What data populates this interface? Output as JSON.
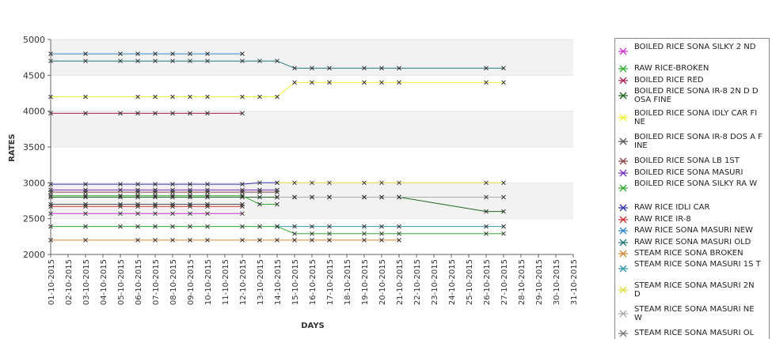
{
  "chart_data": {
    "type": "line",
    "xlabel": "DAYS",
    "ylabel": "RATES",
    "ylim": [
      2000,
      5000
    ],
    "yticks": [
      2000,
      2500,
      3000,
      3500,
      4000,
      4500,
      5000
    ],
    "grid": "alternating horizontal bands",
    "legend_placement": "right",
    "categories": [
      "01-10-2015",
      "02-10-2015",
      "03-10-2015",
      "04-10-2015",
      "05-10-2015",
      "06-10-2015",
      "07-10-2015",
      "08-10-2015",
      "09-10-2015",
      "10-10-2015",
      "11-10-2015",
      "12-10-2015",
      "13-10-2015",
      "14-10-2015",
      "15-10-2015",
      "16-10-2015",
      "17-10-2015",
      "18-10-2015",
      "19-10-2015",
      "20-10-2015",
      "21-10-2015",
      "22-10-2015",
      "23-10-2015",
      "24-10-2015",
      "25-10-2015",
      "26-10-2015",
      "27-10-2015",
      "28-10-2015",
      "29-10-2015",
      "30-10-2015",
      "31-10-2015"
    ],
    "series": [
      {
        "name": "BOILED RICE SONA SILKY 2 ND",
        "color": "#cc33cc",
        "points": [
          [
            1,
            2570
          ],
          [
            3,
            2570
          ],
          [
            5,
            2570
          ],
          [
            6,
            2570
          ],
          [
            7,
            2570
          ],
          [
            8,
            2570
          ],
          [
            9,
            2570
          ],
          [
            10,
            2570
          ],
          [
            12,
            2570
          ]
        ]
      },
      {
        "name": " RAW RICE-BROKEN",
        "color": "#33aa33",
        "points": [
          [
            1,
            2390
          ],
          [
            3,
            2390
          ],
          [
            5,
            2390
          ],
          [
            6,
            2390
          ],
          [
            7,
            2390
          ],
          [
            8,
            2390
          ],
          [
            9,
            2390
          ],
          [
            10,
            2390
          ],
          [
            12,
            2390
          ],
          [
            13,
            2390
          ],
          [
            14,
            2390
          ],
          [
            15,
            2290
          ],
          [
            16,
            2290
          ],
          [
            17,
            2290
          ],
          [
            19,
            2290
          ],
          [
            20,
            2290
          ],
          [
            21,
            2290
          ],
          [
            26,
            2290
          ],
          [
            27,
            2290
          ]
        ]
      },
      {
        "name": "BOILED RICE RED",
        "color": "#aa2255",
        "points": [
          [
            1,
            3970
          ],
          [
            3,
            3970
          ],
          [
            5,
            3970
          ],
          [
            6,
            3970
          ],
          [
            7,
            3970
          ],
          [
            8,
            3970
          ],
          [
            9,
            3970
          ],
          [
            10,
            3970
          ],
          [
            12,
            3970
          ]
        ]
      },
      {
        "name": "BOILED RICE SONA  IR-8 2N D DOSA FINE",
        "color": "#226622",
        "points": [
          [
            1,
            2800
          ],
          [
            3,
            2800
          ],
          [
            5,
            2800
          ],
          [
            6,
            2800
          ],
          [
            7,
            2800
          ],
          [
            8,
            2800
          ],
          [
            9,
            2800
          ],
          [
            10,
            2800
          ],
          [
            12,
            2800
          ],
          [
            13,
            2800
          ],
          [
            14,
            2800
          ],
          [
            15,
            2800
          ],
          [
            16,
            2800
          ],
          [
            17,
            2800
          ],
          [
            19,
            2800
          ],
          [
            20,
            2800
          ],
          [
            21,
            2800
          ],
          [
            26,
            2600
          ],
          [
            27,
            2600
          ]
        ]
      },
      {
        "name": "BOILED RICE SONA IDLY CAR  FINE",
        "color": "#eeee33",
        "points": [
          [
            1,
            4200
          ],
          [
            3,
            4200
          ],
          [
            6,
            4200
          ],
          [
            7,
            4200
          ],
          [
            8,
            4200
          ],
          [
            9,
            4200
          ],
          [
            10,
            4200
          ],
          [
            12,
            4200
          ],
          [
            13,
            4200
          ],
          [
            14,
            4200
          ],
          [
            15,
            4400
          ],
          [
            16,
            4400
          ],
          [
            17,
            4400
          ],
          [
            19,
            4400
          ],
          [
            20,
            4400
          ],
          [
            21,
            4400
          ],
          [
            26,
            4400
          ],
          [
            27,
            4400
          ]
        ]
      },
      {
        "name": "BOILED RICE SONA IR-8 DOS A FINE",
        "color": "#555555",
        "points": [
          [
            1,
            2700
          ],
          [
            3,
            2700
          ],
          [
            5,
            2700
          ],
          [
            6,
            2700
          ],
          [
            7,
            2700
          ],
          [
            8,
            2700
          ],
          [
            9,
            2700
          ],
          [
            10,
            2700
          ],
          [
            12,
            2700
          ]
        ]
      },
      {
        "name": "BOILED RICE SONA LB 1ST",
        "color": "#884444",
        "points": [
          [
            1,
            2870
          ],
          [
            3,
            2870
          ],
          [
            6,
            2870
          ],
          [
            7,
            2870
          ],
          [
            8,
            2870
          ],
          [
            9,
            2870
          ],
          [
            10,
            2870
          ],
          [
            12,
            2870
          ],
          [
            13,
            2870
          ],
          [
            14,
            2870
          ]
        ]
      },
      {
        "name": "BOILED RICE SONA MASURI",
        "color": "#7733bb",
        "points": [
          [
            1,
            2900
          ],
          [
            3,
            2900
          ],
          [
            5,
            2900
          ],
          [
            6,
            2900
          ],
          [
            7,
            2900
          ],
          [
            8,
            2900
          ],
          [
            9,
            2900
          ],
          [
            10,
            2900
          ],
          [
            12,
            2900
          ],
          [
            13,
            2900
          ],
          [
            14,
            2900
          ]
        ]
      },
      {
        "name": "BOILED RICE SONA SILKY RA W",
        "color": "#33aa33",
        "points": [
          [
            1,
            2820
          ],
          [
            3,
            2820
          ],
          [
            5,
            2820
          ],
          [
            6,
            2820
          ],
          [
            7,
            2820
          ],
          [
            8,
            2820
          ],
          [
            9,
            2820
          ],
          [
            10,
            2820
          ],
          [
            12,
            2820
          ],
          [
            13,
            2700
          ],
          [
            14,
            2700
          ]
        ]
      },
      {
        "name": "RAW RICE IDLI CAR",
        "color": "#3333aa",
        "points": [
          [
            1,
            2980
          ],
          [
            3,
            2980
          ],
          [
            5,
            2980
          ],
          [
            6,
            2980
          ],
          [
            7,
            2980
          ],
          [
            8,
            2980
          ],
          [
            9,
            2980
          ],
          [
            10,
            2980
          ],
          [
            12,
            2980
          ],
          [
            13,
            3000
          ],
          [
            14,
            3000
          ]
        ]
      },
      {
        "name": "RAW RICE IR-8",
        "color": "#cc3333",
        "points": [
          [
            1,
            2670
          ],
          [
            3,
            2670
          ],
          [
            5,
            2670
          ],
          [
            6,
            2670
          ],
          [
            7,
            2670
          ],
          [
            8,
            2670
          ],
          [
            9,
            2670
          ],
          [
            10,
            2670
          ],
          [
            12,
            2670
          ]
        ]
      },
      {
        "name": "RAW RICE SONA MASURI NEW",
        "color": "#3388cc",
        "points": [
          [
            1,
            4800
          ],
          [
            3,
            4800
          ],
          [
            5,
            4800
          ],
          [
            6,
            4800
          ],
          [
            7,
            4800
          ],
          [
            8,
            4800
          ],
          [
            9,
            4800
          ],
          [
            10,
            4800
          ],
          [
            12,
            4800
          ]
        ]
      },
      {
        "name": "RAW RICE SONA MASURI OLD",
        "color": "#227777",
        "points": [
          [
            1,
            4700
          ],
          [
            3,
            4700
          ],
          [
            5,
            4700
          ],
          [
            6,
            4700
          ],
          [
            7,
            4700
          ],
          [
            8,
            4700
          ],
          [
            9,
            4700
          ],
          [
            10,
            4700
          ],
          [
            12,
            4700
          ],
          [
            13,
            4700
          ],
          [
            14,
            4700
          ],
          [
            15,
            4600
          ],
          [
            16,
            4600
          ],
          [
            17,
            4600
          ],
          [
            19,
            4600
          ],
          [
            20,
            4600
          ],
          [
            21,
            4600
          ],
          [
            26,
            4600
          ],
          [
            27,
            4600
          ]
        ]
      },
      {
        "name": "STEAM RICE SONA BROKEN",
        "color": "#cc8833",
        "points": [
          [
            1,
            2200
          ],
          [
            3,
            2200
          ],
          [
            6,
            2200
          ],
          [
            7,
            2200
          ],
          [
            8,
            2200
          ],
          [
            9,
            2200
          ],
          [
            10,
            2200
          ],
          [
            12,
            2200
          ],
          [
            13,
            2200
          ],
          [
            14,
            2200
          ],
          [
            15,
            2200
          ],
          [
            16,
            2200
          ],
          [
            17,
            2200
          ],
          [
            19,
            2200
          ],
          [
            20,
            2200
          ],
          [
            21,
            2200
          ]
        ]
      },
      {
        "name": "STEAM RICE SONA MASURI 1S T",
        "color": "#3399aa",
        "points": [
          [
            14,
            2390
          ],
          [
            15,
            2390
          ],
          [
            16,
            2390
          ],
          [
            17,
            2390
          ],
          [
            19,
            2390
          ],
          [
            20,
            2390
          ],
          [
            21,
            2390
          ],
          [
            26,
            2390
          ],
          [
            27,
            2390
          ]
        ]
      },
      {
        "name": "STEAM RICE SONA MASURI 2N D",
        "color": "#dddd44",
        "points": [
          [
            14,
            3000
          ],
          [
            15,
            3000
          ],
          [
            16,
            3000
          ],
          [
            17,
            3000
          ],
          [
            19,
            3000
          ],
          [
            20,
            3000
          ],
          [
            21,
            3000
          ],
          [
            26,
            3000
          ],
          [
            27,
            3000
          ]
        ]
      },
      {
        "name": "STEAM RICE SONA MASURI NE W",
        "color": "#aaaaaa",
        "points": [
          [
            14,
            2800
          ],
          [
            15,
            2800
          ],
          [
            16,
            2800
          ],
          [
            17,
            2800
          ],
          [
            19,
            2800
          ],
          [
            20,
            2800
          ],
          [
            21,
            2800
          ],
          [
            26,
            2800
          ],
          [
            27,
            2800
          ]
        ]
      },
      {
        "name": "STEAM RICE SONA MASURI OL",
        "color": "#777777",
        "points": []
      }
    ]
  }
}
